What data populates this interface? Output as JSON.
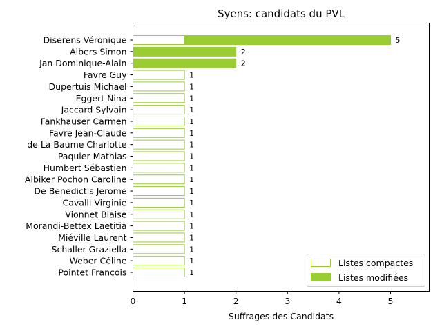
{
  "colors": {
    "accent": "#9acd32",
    "axis": "#000000"
  },
  "chart_data": {
    "type": "bar",
    "orientation": "horizontal",
    "stacked": true,
    "title": "Syens: candidats du PVL",
    "xlabel": "Suffrages des Candidats",
    "ylabel": "",
    "xlim": [
      0,
      5.75
    ],
    "xticks": [
      0,
      1,
      2,
      3,
      4,
      5
    ],
    "grid": false,
    "legend_position": "bottom-right",
    "categories": [
      "Diserens Véronique",
      "Albers Simon",
      "Jan Dominique-Alain",
      "Favre Guy",
      "Dupertuis Michael",
      "Eggert Nina",
      "Jaccard Sylvain",
      "Fankhauser Carmen",
      "Favre Jean-Claude",
      "de La Baume Charlotte",
      "Paquier Mathias",
      "Humbert Sébastien",
      "Albiker Pochon Caroline",
      "De Benedictis Jerome",
      "Cavalli Virginie",
      "Vionnet Blaise",
      "Morandi-Bettex Laetitia",
      "Miéville Laurent",
      "Schaller Graziella",
      "Weber Céline",
      "Pointet François"
    ],
    "series": [
      {
        "name": "Listes compactes",
        "style": "outline",
        "values": [
          1,
          0,
          0,
          1,
          1,
          1,
          1,
          1,
          1,
          1,
          1,
          1,
          1,
          1,
          1,
          1,
          1,
          1,
          1,
          1,
          1
        ]
      },
      {
        "name": "Listes modifiées",
        "style": "filled",
        "values": [
          4,
          2,
          2,
          0,
          0,
          0,
          0,
          0,
          0,
          0,
          0,
          0,
          0,
          0,
          0,
          0,
          0,
          0,
          0,
          0,
          0
        ]
      }
    ],
    "totals": [
      "5",
      "2",
      "2",
      "1",
      "1",
      "1",
      "1",
      "1",
      "1",
      "1",
      "1",
      "1",
      "1",
      "1",
      "1",
      "1",
      "1",
      "1",
      "1",
      "1",
      "1"
    ]
  }
}
